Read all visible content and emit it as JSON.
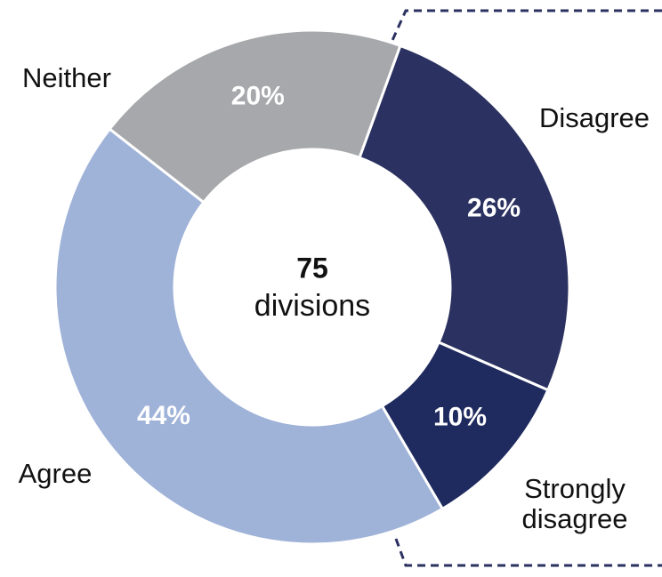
{
  "chart_data": {
    "type": "donut",
    "categories": [
      "Disagree",
      "Strongly disagree",
      "Agree",
      "Neither"
    ],
    "values": [
      26,
      10,
      44,
      20
    ],
    "value_labels": [
      "26%",
      "10%",
      "44%",
      "20%"
    ],
    "colors": [
      "#2b3160",
      "#1f2a5e",
      "#9fb2d8",
      "#a7a8ab"
    ],
    "total": 75,
    "total_label": "divisions"
  }
}
